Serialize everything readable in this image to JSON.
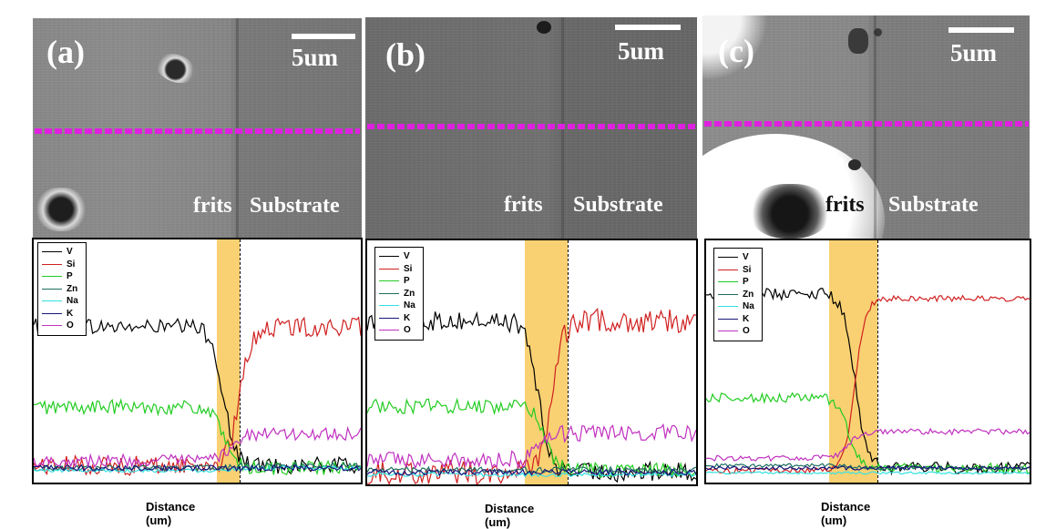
{
  "elements": [
    {
      "symbol": "V",
      "color": "#000000"
    },
    {
      "symbol": "Si",
      "color": "#d02020"
    },
    {
      "symbol": "P",
      "color": "#22cc22"
    },
    {
      "symbol": "Zn",
      "color": "#1f6f5f"
    },
    {
      "symbol": "Na",
      "color": "#33e0e0"
    },
    {
      "symbol": "K",
      "color": "#15157a"
    },
    {
      "symbol": "O",
      "color": "#c030c0"
    }
  ],
  "scale_bar_label": "5um",
  "region_labels": {
    "left": "frits",
    "right": "Substrate"
  },
  "x_axis_label": "Distance (um)",
  "line_scan_color": "#e020e0",
  "interface_band_color": "#f9cf6a",
  "panels": [
    {
      "label": "(a)"
    },
    {
      "label": "(b)"
    },
    {
      "label": "(c)"
    }
  ],
  "chart_data": [
    {
      "type": "line",
      "title": "(a)",
      "xlabel": "Distance (um)",
      "ylabel": "",
      "xlim": [
        0,
        100
      ],
      "ylim": [
        0,
        100
      ],
      "interface_band": [
        56,
        63
      ],
      "interface_line": 63,
      "series": [
        {
          "name": "V",
          "profile": "step_down",
          "left": 64,
          "right": 7,
          "at": 58,
          "noise": 3.5
        },
        {
          "name": "Si",
          "profile": "step_up",
          "left": 7,
          "right": 64,
          "at": 63,
          "noise": 4
        },
        {
          "name": "P",
          "profile": "step_down",
          "left": 31,
          "right": 6,
          "at": 58,
          "noise": 3
        },
        {
          "name": "Zn",
          "profile": "flat",
          "left": 6,
          "right": 7,
          "at": 60,
          "noise": 1.2
        },
        {
          "name": "Na",
          "profile": "flat",
          "left": 5,
          "right": 6,
          "at": 60,
          "noise": 0.8
        },
        {
          "name": "K",
          "profile": "flat",
          "left": 6,
          "right": 6,
          "at": 60,
          "noise": 1.2
        },
        {
          "name": "O",
          "profile": "step_up",
          "left": 9,
          "right": 20,
          "at": 60,
          "noise": 2.5
        }
      ]
    },
    {
      "type": "line",
      "title": "(b)",
      "xlabel": "Distance (um)",
      "ylabel": "",
      "xlim": [
        0,
        100
      ],
      "ylim": [
        0,
        100
      ],
      "interface_band": [
        48,
        61
      ],
      "interface_line": 61,
      "series": [
        {
          "name": "V",
          "profile": "step_down",
          "left": 67,
          "right": 5,
          "at": 52,
          "noise": 4
        },
        {
          "name": "Si",
          "profile": "step_up",
          "left": 5,
          "right": 67,
          "at": 56,
          "noise": 5
        },
        {
          "name": "P",
          "profile": "step_down",
          "left": 32,
          "right": 6,
          "at": 54,
          "noise": 3
        },
        {
          "name": "Zn",
          "profile": "flat",
          "left": 6,
          "right": 6,
          "at": 55,
          "noise": 1.2
        },
        {
          "name": "Na",
          "profile": "flat",
          "left": 4,
          "right": 4,
          "at": 55,
          "noise": 0.8
        },
        {
          "name": "K",
          "profile": "flat",
          "left": 5,
          "right": 5,
          "at": 55,
          "noise": 1.2
        },
        {
          "name": "O",
          "profile": "step_up",
          "left": 10,
          "right": 21,
          "at": 53,
          "noise": 3.5
        }
      ]
    },
    {
      "type": "line",
      "title": "(c)",
      "xlabel": "Distance (um)",
      "ylabel": "",
      "xlim": [
        0,
        100
      ],
      "ylim": [
        0,
        100
      ],
      "interface_band": [
        38,
        53
      ],
      "interface_line": 53,
      "series": [
        {
          "name": "V",
          "profile": "step_down",
          "left": 78,
          "right": 6,
          "at": 46,
          "noise": 2.5
        },
        {
          "name": "Si",
          "profile": "step_up",
          "left": 5,
          "right": 76,
          "at": 46,
          "noise": 1.2
        },
        {
          "name": "P",
          "profile": "step_down",
          "left": 35,
          "right": 6,
          "at": 44,
          "noise": 2
        },
        {
          "name": "Zn",
          "profile": "flat",
          "left": 7,
          "right": 6,
          "at": 46,
          "noise": 0.8
        },
        {
          "name": "Na",
          "profile": "flat",
          "left": 4,
          "right": 4,
          "at": 46,
          "noise": 0.5
        },
        {
          "name": "K",
          "profile": "flat",
          "left": 6,
          "right": 6,
          "at": 46,
          "noise": 0.8
        },
        {
          "name": "O",
          "profile": "step_up",
          "left": 10,
          "right": 21,
          "at": 44,
          "noise": 1.2
        }
      ]
    }
  ]
}
